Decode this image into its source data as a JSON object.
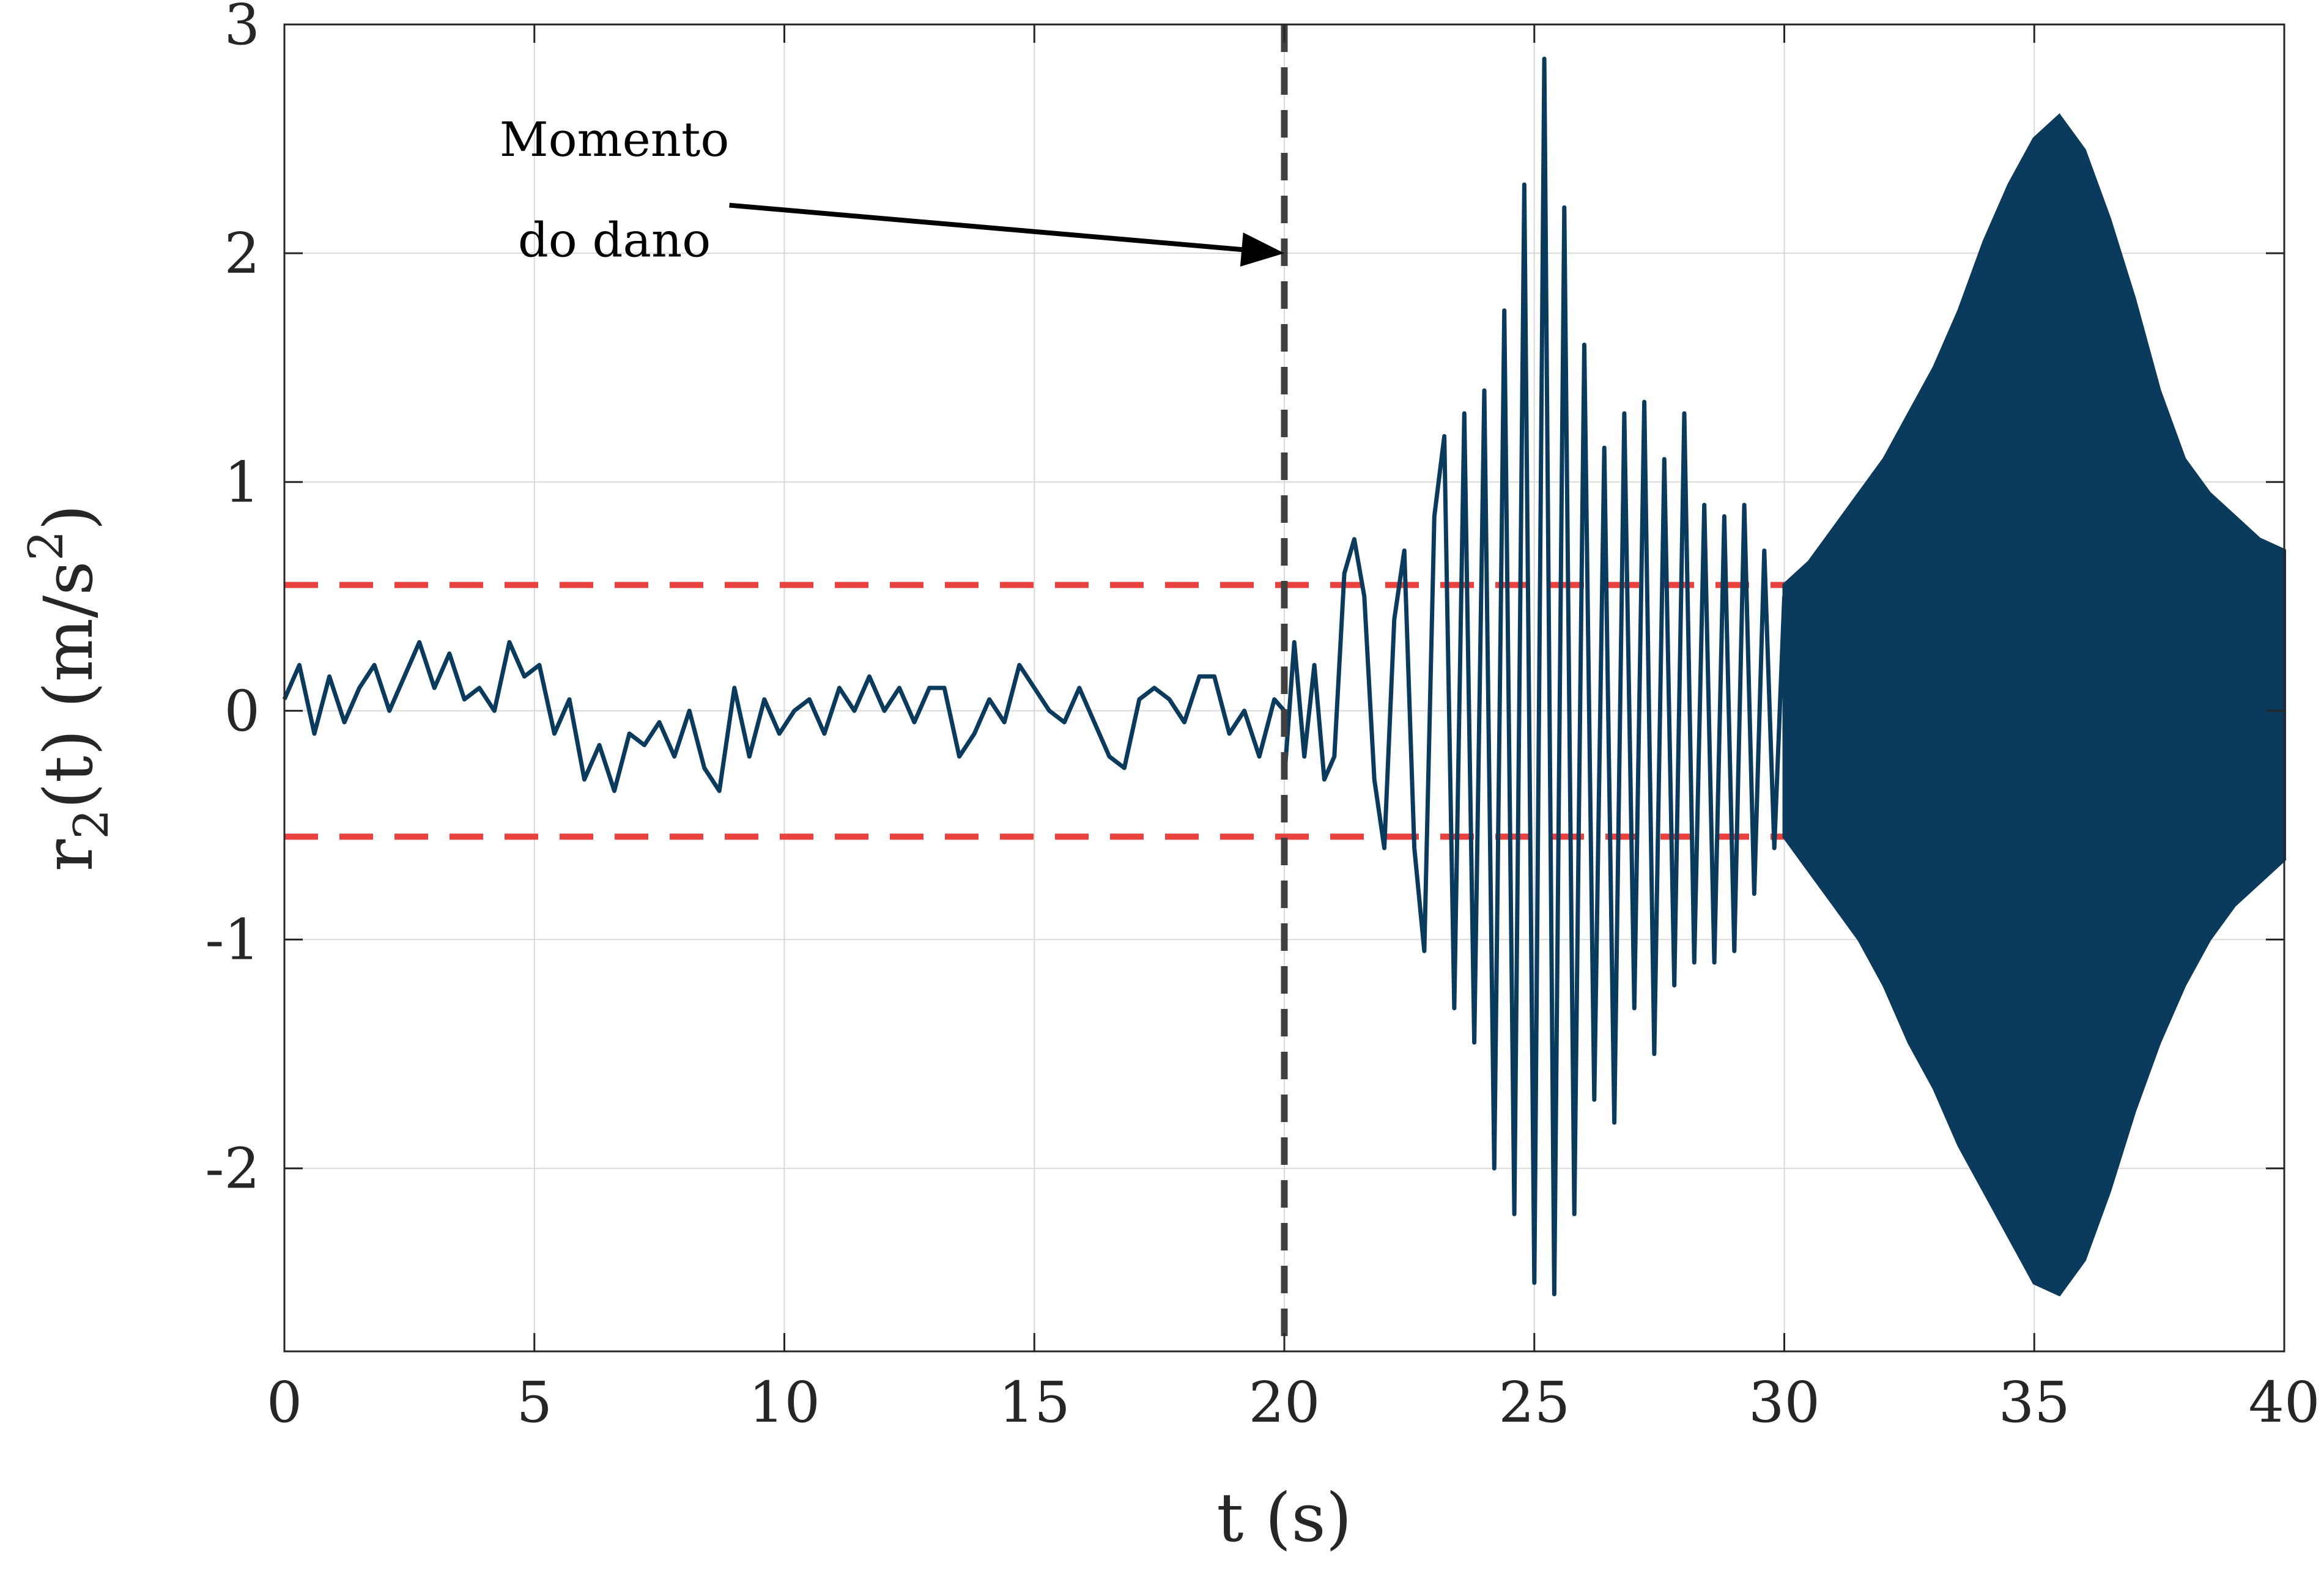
{
  "chart_data": {
    "type": "line",
    "title": "",
    "xlabel": "t (s)",
    "ylabel_parts": {
      "base": "r",
      "sub": "2",
      "mid": "(t) (m/s",
      "sup": "2",
      "end": ")"
    },
    "xlim": [
      0,
      40
    ],
    "ylim": [
      -2.8,
      3
    ],
    "xticks": [
      0,
      5,
      10,
      15,
      20,
      25,
      30,
      35,
      40
    ],
    "yticks": [
      -2,
      -1,
      0,
      1,
      2,
      3
    ],
    "xtick_labels": [
      "0",
      "5",
      "10",
      "15",
      "20",
      "25",
      "30",
      "35",
      "40"
    ],
    "ytick_labels": [
      "-2",
      "-1",
      "0",
      "1",
      "2",
      "3"
    ],
    "grid": true,
    "legend": "none",
    "colors": {
      "signal": "#0a3a5c",
      "threshold": "#e8413e",
      "damage_line": "#404040",
      "grid": "#d9d9d9"
    },
    "thresholds": [
      0.55,
      -0.55
    ],
    "damage_time": 20,
    "annotation": {
      "lines": [
        "Momento",
        "do dano"
      ],
      "arrow_target": [
        20,
        2
      ]
    },
    "series": [
      {
        "segments": [
          {
            "x": [
              0,
              0.3,
              0.6,
              0.9,
              1.2,
              1.5,
              1.8,
              2.1,
              2.4,
              2.7,
              3.0,
              3.3,
              3.6,
              3.9,
              4.2,
              4.5,
              4.8,
              5.1,
              5.4,
              5.7,
              6.0,
              6.3,
              6.6,
              6.9,
              7.2,
              7.5,
              7.8,
              8.1,
              8.4,
              8.7,
              9.0,
              9.3,
              9.6,
              9.9,
              10.2,
              10.5,
              10.8,
              11.1,
              11.4,
              11.7,
              12.0,
              12.3,
              12.6,
              12.9,
              13.2,
              13.5,
              13.8,
              14.1,
              14.4,
              14.7,
              15.0,
              15.3,
              15.6,
              15.9,
              16.2,
              16.5,
              16.8,
              17.1,
              17.4,
              17.7,
              18.0,
              18.3,
              18.6,
              18.9,
              19.2,
              19.5,
              19.8,
              20.0
            ],
            "y": [
              0.05,
              0.2,
              -0.1,
              0.15,
              -0.05,
              0.1,
              0.2,
              0.0,
              0.15,
              0.3,
              0.1,
              0.25,
              0.05,
              0.1,
              0.0,
              0.3,
              0.15,
              0.2,
              -0.1,
              0.05,
              -0.3,
              -0.15,
              -0.35,
              -0.1,
              -0.15,
              -0.05,
              -0.2,
              0.0,
              -0.25,
              -0.35,
              0.1,
              -0.2,
              0.05,
              -0.1,
              0.0,
              0.05,
              -0.1,
              0.1,
              0.0,
              0.15,
              0.0,
              0.1,
              -0.05,
              0.1,
              0.1,
              -0.2,
              -0.1,
              0.05,
              -0.05,
              0.2,
              0.1,
              0.0,
              -0.05,
              0.1,
              -0.05,
              -0.2,
              -0.25,
              0.05,
              0.1,
              0.05,
              -0.05,
              0.15,
              0.15,
              -0.1,
              0.0,
              -0.2,
              0.05,
              0.0
            ]
          },
          {
            "x": [
              20.0,
              20.2,
              20.4,
              20.6,
              20.8,
              21.0,
              21.2,
              21.4,
              21.6,
              21.8,
              22.0,
              22.2,
              22.4,
              22.6,
              22.8,
              23.0,
              23.2,
              23.4,
              23.6,
              23.8,
              24.0,
              24.2,
              24.4,
              24.6,
              24.8,
              25.0,
              25.2,
              25.4,
              25.6,
              25.8,
              26.0,
              26.2,
              26.4,
              26.6,
              26.8,
              27.0,
              27.2,
              27.4,
              27.6,
              27.8,
              28.0,
              28.2,
              28.4,
              28.6,
              28.8,
              29.0,
              29.2,
              29.4,
              29.6,
              29.8,
              30.0
            ],
            "y": [
              -0.3,
              0.3,
              -0.2,
              0.2,
              -0.3,
              -0.2,
              0.6,
              0.75,
              0.5,
              -0.3,
              -0.6,
              0.4,
              0.7,
              -0.6,
              -1.05,
              0.85,
              1.2,
              -1.3,
              1.3,
              -1.45,
              1.4,
              -2.0,
              1.75,
              -2.2,
              2.3,
              -2.5,
              2.85,
              -2.55,
              2.2,
              -2.2,
              1.6,
              -1.7,
              1.15,
              -1.8,
              1.3,
              -1.3,
              1.35,
              -1.5,
              1.1,
              -1.2,
              1.3,
              -1.1,
              0.9,
              -1.1,
              0.85,
              -1.05,
              0.9,
              -0.8,
              0.7,
              -0.6,
              0.5
            ]
          },
          {
            "x": [
              30.0,
              30.5,
              31.0,
              31.5,
              32.0,
              32.5,
              33.0,
              33.5,
              34.0,
              34.5,
              35.0,
              35.5,
              36.0,
              36.5,
              37.0,
              37.5,
              38.0,
              38.5,
              39.0,
              39.5,
              40.0
            ],
            "y": [
              0.55,
              0.65,
              0.8,
              0.95,
              1.1,
              1.3,
              1.5,
              1.75,
              2.05,
              2.3,
              2.5,
              2.6,
              2.45,
              2.15,
              1.8,
              1.4,
              1.1,
              0.95,
              0.85,
              0.75,
              0.7
            ],
            "y_low": [
              -0.55,
              -0.7,
              -0.85,
              -1.0,
              -1.2,
              -1.45,
              -1.65,
              -1.9,
              -2.1,
              -2.3,
              -2.5,
              -2.55,
              -2.4,
              -2.1,
              -1.75,
              -1.45,
              -1.2,
              -1.0,
              -0.85,
              -0.75,
              -0.65
            ]
          }
        ]
      }
    ]
  }
}
